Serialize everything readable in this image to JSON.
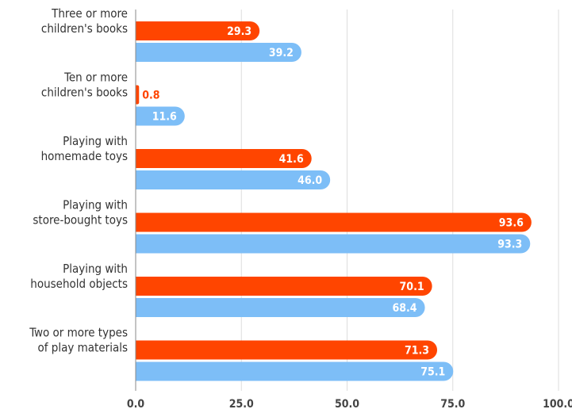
{
  "chart_data": {
    "type": "bar",
    "orientation": "horizontal",
    "categories": [
      [
        "Three or more",
        "children's books"
      ],
      [
        "Ten or more",
        "children's books"
      ],
      [
        "Playing with",
        "homemade toys"
      ],
      [
        "Playing with",
        "store-bought toys"
      ],
      [
        "Playing with",
        "household objects"
      ],
      [
        "Two or more types",
        "of play materials"
      ]
    ],
    "series": [
      {
        "color": "#ff4500",
        "values": [
          29.3,
          0.8,
          41.6,
          93.6,
          70.1,
          71.3
        ]
      },
      {
        "color": "#7dbef7",
        "values": [
          39.2,
          11.6,
          46.0,
          93.3,
          68.4,
          75.1
        ]
      }
    ],
    "xlim": [
      0,
      100
    ],
    "xticks": [
      "0.0",
      "25.0",
      "50.0",
      "75.0",
      "100.0"
    ],
    "grid": true,
    "legend": false
  }
}
